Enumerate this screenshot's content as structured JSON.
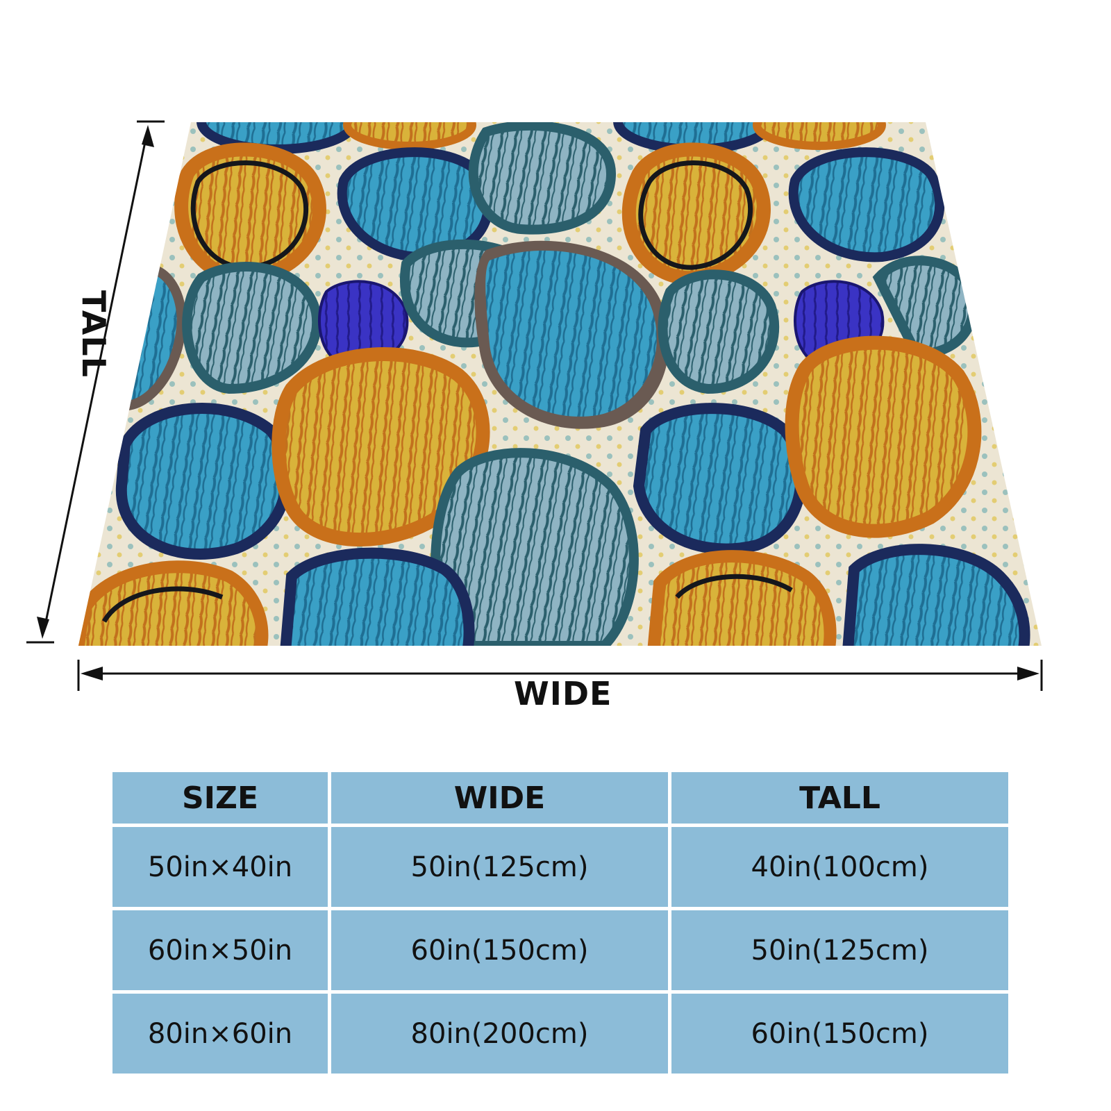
{
  "figure": {
    "wide_label": "WIDE",
    "tall_label": "TALL",
    "colors": {
      "cream": "#ece5d3",
      "teal": "#2f8fb5",
      "light_teal": "#4fb0d2",
      "navy": "#1b2a5c",
      "orange": "#c9701a",
      "mustard": "#d9b33a",
      "royal_blue": "#3a33c4",
      "gray_blue": "#5b8a9c",
      "brown": "#6a5a52",
      "dark_teal": "#2b5f6c"
    }
  },
  "table": {
    "headers": [
      "SIZE",
      "WIDE",
      "TALL"
    ],
    "rows": [
      {
        "size": "50in×40in",
        "wide": "50in(125cm)",
        "tall": "40in(100cm)"
      },
      {
        "size": "60in×50in",
        "wide": "60in(150cm)",
        "tall": "50in(125cm)"
      },
      {
        "size": "80in×60in",
        "wide": "80in(200cm)",
        "tall": "60in(150cm)"
      }
    ],
    "colors": {
      "cell": "#8cbcd8",
      "text": "#111111"
    }
  }
}
